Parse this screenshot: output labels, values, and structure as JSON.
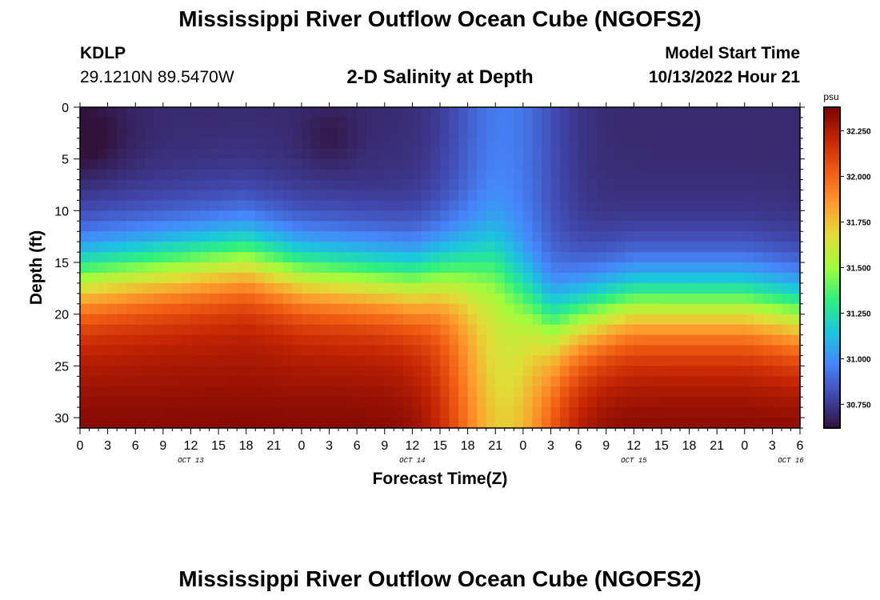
{
  "header": {
    "title": "Mississippi River Outflow Ocean Cube (NGOFS2)",
    "station": "KDLP",
    "coordinates": "29.1210N  89.5470W",
    "subtitle": "2-D Salinity at Depth",
    "model_start_label": "Model Start Time",
    "model_start_value": "10/13/2022 Hour 21"
  },
  "footer": {
    "title": "Mississippi River Outflow Ocean Cube (NGOFS2)"
  },
  "chart_data": {
    "type": "heatmap",
    "xlabel": "Forecast Time(Z)",
    "ylabel": "Depth (ft)",
    "x_hours_from_oct13_00": [
      0,
      78
    ],
    "x_tick_labels": [
      "0",
      "3",
      "6",
      "9",
      "12",
      "15",
      "18",
      "21",
      "0",
      "3",
      "6",
      "9",
      "12",
      "15",
      "18",
      "21",
      "0",
      "3",
      "6",
      "9",
      "12",
      "15",
      "18",
      "21",
      "0",
      "3",
      "6"
    ],
    "x_day_labels": [
      {
        "label": "OCT 13",
        "hour": 12
      },
      {
        "label": "OCT 14",
        "hour": 36
      },
      {
        "label": "OCT 15",
        "hour": 60
      },
      {
        "label": "OCT 16",
        "hour": 77
      }
    ],
    "y_ticks": [
      0,
      5,
      10,
      15,
      20,
      25,
      30
    ],
    "ylim": [
      0,
      31
    ],
    "y_inverted": true,
    "colorbar": {
      "unit": "psu",
      "range": [
        30.62,
        32.38
      ],
      "ticks": [
        "30.750",
        "31.000",
        "31.250",
        "31.500",
        "31.750",
        "32.000",
        "32.250"
      ],
      "tick_values": [
        30.75,
        31.0,
        31.25,
        31.5,
        31.75,
        32.0,
        32.25
      ],
      "colormap": [
        "#30123b",
        "#4146ab",
        "#4686fb",
        "#1ac7dd",
        "#2ef07f",
        "#a2fc3c",
        "#e1dd37",
        "#fe9b2d",
        "#f05b12",
        "#c42503",
        "#7a0403"
      ]
    },
    "salinity_description": {
      "surface_fresh_psu": 30.7,
      "bottom_salty_psu": 32.3,
      "halocline_depth_ft": {
        "0": 16.5,
        "18": 14.5,
        "24": 16,
        "36": 17,
        "45": 15,
        "51": 21,
        "60": 19,
        "66": 19,
        "72": 19,
        "78": 20
      },
      "mixing_event_hours": [
        44,
        48
      ]
    }
  }
}
